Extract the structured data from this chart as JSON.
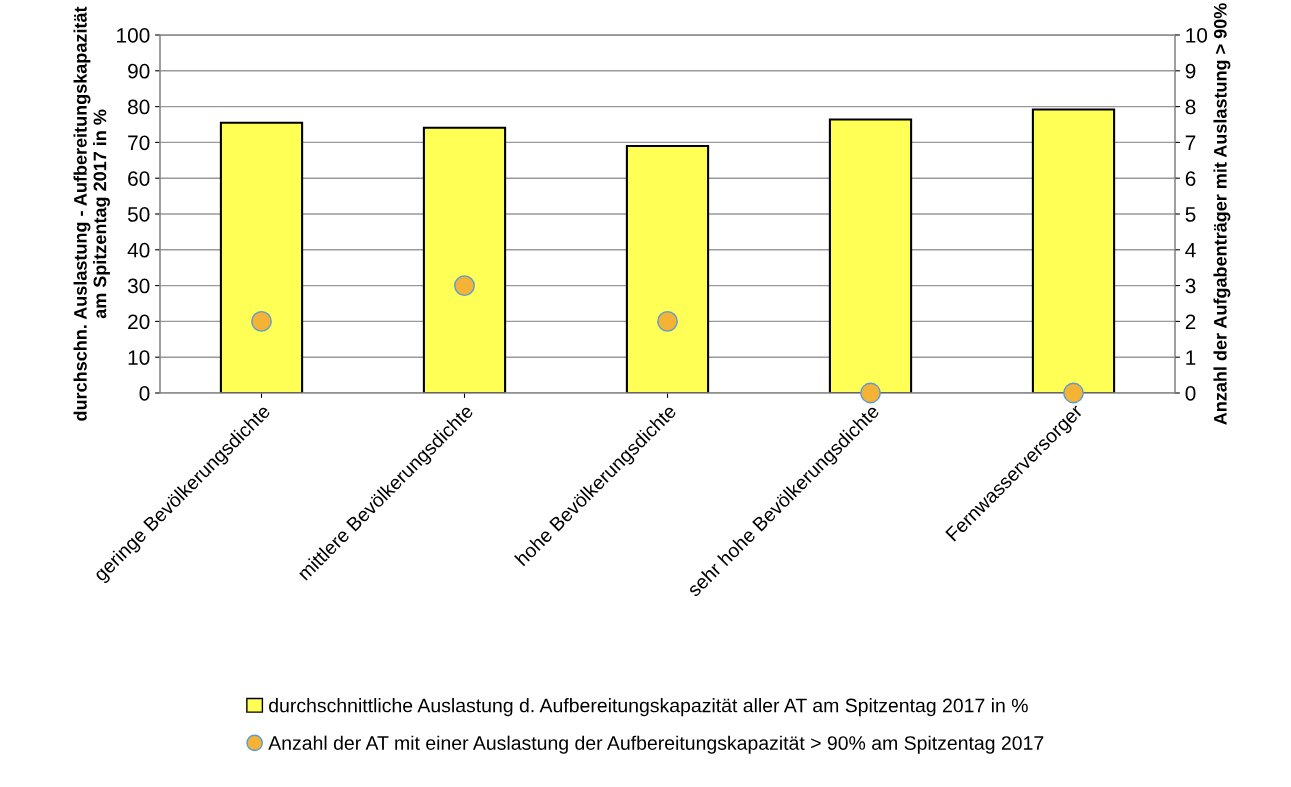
{
  "chart_data": {
    "type": "bar",
    "categories": [
      "geringe Bevölkerungsdichte",
      "mittlere Bevölkerungsdichte",
      "hohe Bevölkerungsdichte",
      "sehr hohe Bevölkerungsdichte",
      "Fernwasserversorger"
    ],
    "series": [
      {
        "name": "durchschnittliche Auslastung d. Aufbereitungskapazität aller AT am Spitzentag 2017 in %",
        "color": "#ffff55",
        "values": [
          75.5,
          74.1,
          69,
          76.4,
          79.2
        ]
      },
      {
        "name": "Anzahl der AT mit einer Auslastung der Aufbereitungskapazität > 90% am Spitzentag 2017",
        "type": "scatter",
        "axis": "y2",
        "marker": "circle",
        "color": "#f5b335",
        "values": [
          2,
          3,
          2,
          0,
          0
        ]
      }
    ],
    "ylabel": "durchschn. Auslastung - Aufbereitungskapazität\nam Spitzentag 2017 in %",
    "y2label": "Anzahl der Aufgabenträger mit Auslastung > 90%",
    "ylim": [
      0,
      100
    ],
    "yticks": [
      0,
      10,
      20,
      30,
      40,
      50,
      60,
      70,
      80,
      90,
      100
    ],
    "y2lim": [
      0,
      10
    ],
    "y2ticks": [
      0,
      1,
      2,
      3,
      4,
      5,
      6,
      7,
      8,
      9,
      10
    ],
    "grid": "y",
    "legend": "bottom"
  }
}
